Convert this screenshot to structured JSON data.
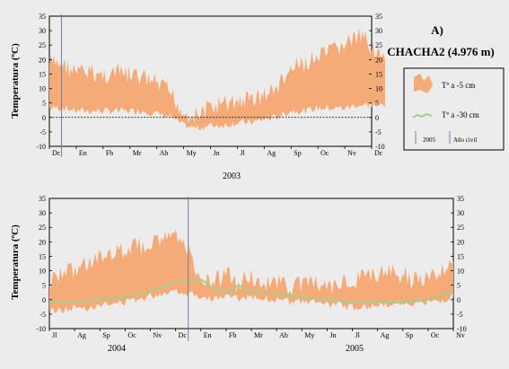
{
  "figure": {
    "panel_label": "A)",
    "station": "CHACHA2 (4.976 m)",
    "ylabel": "Temperatura (ºC)"
  },
  "legend": {
    "surface": "Tª a -5 cm",
    "deep": "Tª a -30 cm",
    "year_marker": "2005",
    "civil_year": "Año civil"
  },
  "colors": {
    "surface_fill": "#f4ab78",
    "deep_line": "#a8cc8c",
    "divider": "#7a7aa0",
    "background": "#ececec"
  },
  "chart_data": [
    {
      "type": "area",
      "title": "",
      "year_labels": [
        "2003"
      ],
      "ylim": [
        -10,
        35
      ],
      "yticks": [
        -10,
        -5,
        0,
        5,
        10,
        15,
        20,
        25,
        30,
        35
      ],
      "months": [
        "Dc",
        "En",
        "Fb",
        "Mr",
        "Ab",
        "My",
        "Jn",
        "Jl",
        "Ag",
        "Sp",
        "Oc",
        "Nv",
        "Dc"
      ],
      "zero_reference_line": true,
      "series": [
        {
          "name": "Tª a -5 cm",
          "x": [
            0,
            0.5,
            1,
            1.5,
            2,
            2.5,
            3,
            3.5,
            4,
            4.5,
            5,
            5.5,
            6,
            6.5,
            7,
            7.5,
            8,
            8.5,
            9,
            9.5,
            10,
            10.5,
            11,
            11.5,
            12,
            12.5
          ],
          "max": [
            22,
            22,
            19,
            19,
            18,
            19,
            18,
            17,
            15,
            12,
            5,
            4,
            7,
            8,
            9,
            10,
            11,
            14,
            20,
            22,
            24,
            26,
            29,
            31,
            29,
            22
          ],
          "min": [
            2,
            2,
            1,
            1,
            1,
            1,
            1,
            1,
            0,
            -1,
            -4,
            -5,
            -4,
            -4,
            -3,
            -3,
            -2,
            -1,
            1,
            1,
            2,
            2,
            2,
            3,
            3,
            3
          ]
        }
      ]
    },
    {
      "type": "area",
      "title": "",
      "year_labels": [
        "2004",
        "2005"
      ],
      "ylim": [
        -10,
        35
      ],
      "yticks": [
        -10,
        -5,
        0,
        5,
        10,
        15,
        20,
        25,
        30,
        35
      ],
      "months": [
        "Jl",
        "Ag",
        "Sp",
        "Oc",
        "Nv",
        "Dc",
        "En",
        "Fb",
        "Mr",
        "Ab",
        "My",
        "Jn",
        "Jl",
        "Ag",
        "Sp",
        "Oc",
        "Nv"
      ],
      "series": [
        {
          "name": "Tª a -5 cm",
          "x": [
            0,
            0.5,
            1,
            1.5,
            2,
            2.5,
            3,
            3.5,
            4,
            4.5,
            5,
            5.5,
            6,
            6.5,
            7,
            7.5,
            8,
            8.5,
            9,
            9.5,
            10,
            10.5,
            11,
            11.5,
            12,
            12.5,
            13,
            13.5,
            14,
            14.5,
            15,
            15.5,
            16
          ],
          "max": [
            10,
            12,
            14,
            17,
            18,
            20,
            21,
            22,
            23,
            24,
            25,
            20,
            12,
            10,
            12,
            9,
            12,
            10,
            9,
            8,
            9,
            9,
            8,
            9,
            10,
            11,
            12,
            13,
            12,
            10,
            12,
            14,
            17
          ],
          "min": [
            -5,
            -5,
            -4,
            -4,
            -3,
            -3,
            -2,
            -1,
            0,
            1,
            2,
            1,
            0,
            -1,
            0,
            -1,
            0,
            -1,
            -1,
            -2,
            -2,
            -2,
            -3,
            -3,
            -4,
            -4,
            -3,
            -3,
            -2,
            -3,
            -2,
            -2,
            0
          ]
        },
        {
          "name": "Tª a -30 cm",
          "x": [
            0,
            1,
            2,
            3,
            4,
            5,
            6,
            6.5,
            7,
            7.5,
            8,
            9,
            10,
            11,
            12,
            13,
            14,
            15,
            16
          ],
          "values": [
            -1,
            -1,
            0,
            1,
            3,
            6,
            7,
            4,
            2,
            5,
            3,
            2,
            1,
            0,
            -1,
            -1,
            -1,
            0,
            3
          ]
        }
      ]
    }
  ]
}
